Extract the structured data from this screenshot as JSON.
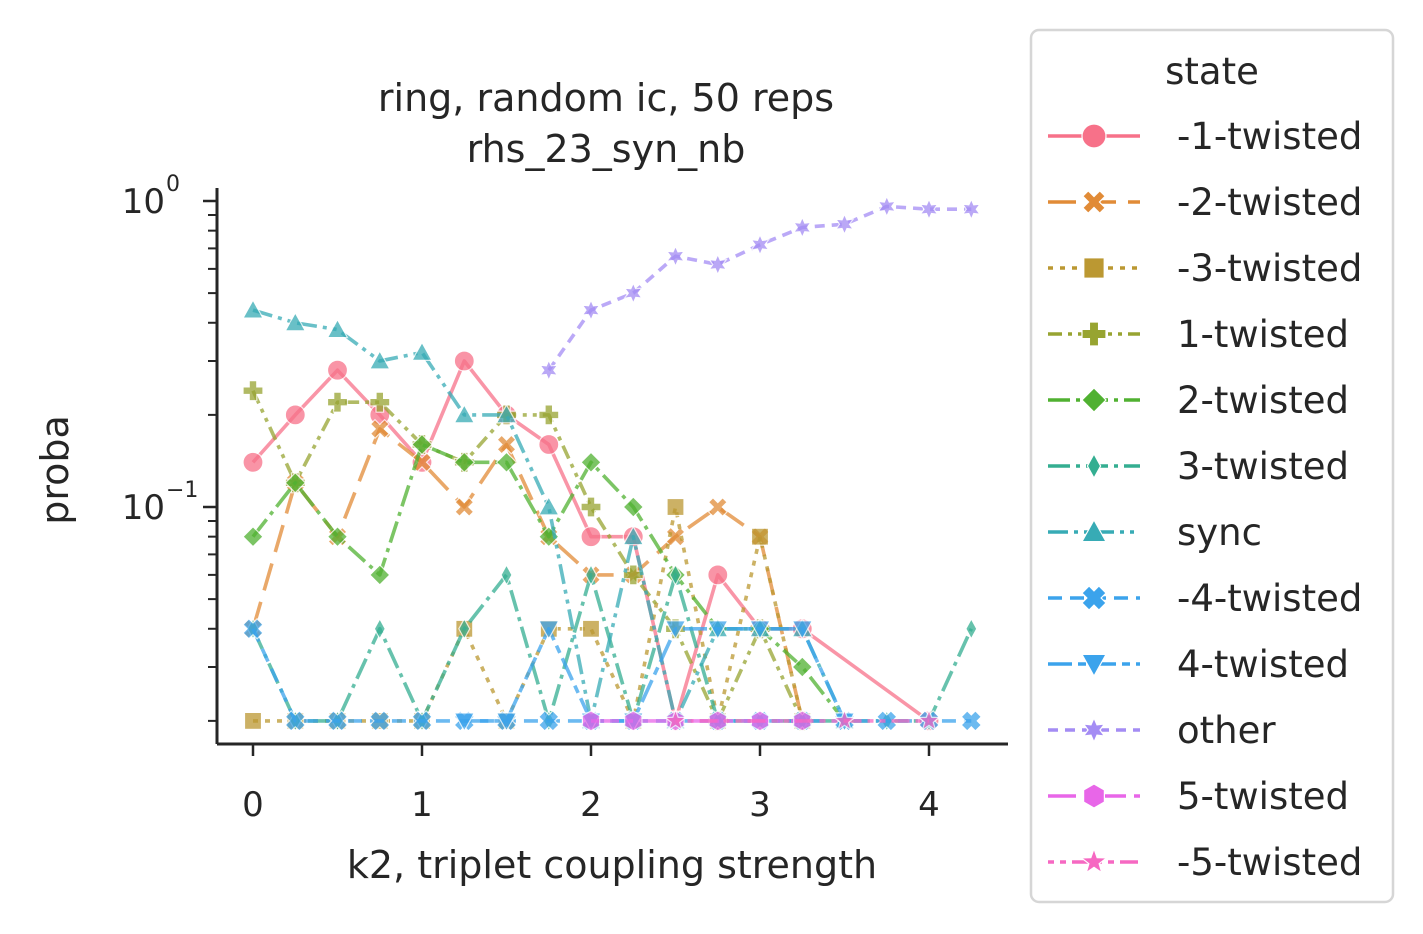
{
  "chart_data": {
    "type": "line",
    "title": [
      "ring, random ic, 50 reps",
      "rhs_23_syn_nb"
    ],
    "xlabel": "k2, triplet coupling strength",
    "ylabel": "proba",
    "yscale": "log",
    "xlim": [
      -0.2,
      4.5
    ],
    "ylim": [
      0.0175,
      1.1
    ],
    "xticks": [
      0,
      1,
      2,
      3,
      4
    ],
    "xtick_labels": [
      "0",
      "1",
      "2",
      "3",
      "4"
    ],
    "ytick_major": [
      {
        "value": 1.0,
        "base": "10",
        "exp": "0"
      },
      {
        "value": 0.1,
        "base": "10",
        "exp": "−1"
      }
    ],
    "ytick_minor": [
      0.02,
      0.03,
      0.04,
      0.05,
      0.06,
      0.07,
      0.08,
      0.09,
      0.2,
      0.3,
      0.4,
      0.5,
      0.6,
      0.7,
      0.8,
      0.9
    ],
    "grid": false,
    "legend": {
      "title": "state",
      "position": "outside right"
    },
    "series": [
      {
        "name": "-1-twisted",
        "color": "#f77189",
        "marker": "circle",
        "dash": "",
        "points": [
          [
            0,
            0.14
          ],
          [
            0.25,
            0.2
          ],
          [
            0.5,
            0.28
          ],
          [
            0.75,
            0.2
          ],
          [
            1,
            0.14
          ],
          [
            1.25,
            0.3
          ],
          [
            1.5,
            0.2
          ],
          [
            1.75,
            0.16
          ],
          [
            2,
            0.08
          ],
          [
            2.25,
            0.08
          ],
          [
            2.5,
            0.02
          ],
          [
            2.75,
            0.06
          ],
          [
            3,
            0.04
          ],
          [
            3.25,
            0.04
          ],
          [
            4,
            0.02
          ]
        ]
      },
      {
        "name": "-2-twisted",
        "color": "#e18b37",
        "marker": "x",
        "dash": "28 12",
        "points": [
          [
            0,
            0.04
          ],
          [
            0.25,
            0.12
          ],
          [
            0.5,
            0.08
          ],
          [
            0.75,
            0.18
          ],
          [
            1,
            0.14
          ],
          [
            1.25,
            0.1
          ],
          [
            1.5,
            0.16
          ],
          [
            1.75,
            0.08
          ],
          [
            2,
            0.06
          ],
          [
            2.25,
            0.06
          ],
          [
            2.5,
            0.08
          ],
          [
            2.75,
            0.1
          ],
          [
            3,
            0.08
          ],
          [
            3.25,
            0.02
          ]
        ]
      },
      {
        "name": "-3-twisted",
        "color": "#bb9832",
        "marker": "square",
        "dash": "5 7",
        "points": [
          [
            0,
            0.02
          ],
          [
            0.25,
            0.02
          ],
          [
            0.5,
            0.02
          ],
          [
            0.75,
            0.02
          ],
          [
            1,
            0.02
          ],
          [
            1.25,
            0.04
          ],
          [
            1.5,
            0.02
          ],
          [
            1.75,
            0.04
          ],
          [
            2,
            0.04
          ],
          [
            2.25,
            0.02
          ],
          [
            2.5,
            0.1
          ],
          [
            2.75,
            0.02
          ],
          [
            3,
            0.08
          ],
          [
            3.25,
            0.02
          ]
        ]
      },
      {
        "name": "1-twisted",
        "color": "#97a431",
        "marker": "plus",
        "dash": "14 6 4 6 4 6",
        "points": [
          [
            0,
            0.24
          ],
          [
            0.25,
            0.12
          ],
          [
            0.5,
            0.22
          ],
          [
            0.75,
            0.22
          ],
          [
            1,
            0.16
          ],
          [
            1.25,
            0.14
          ],
          [
            1.5,
            0.2
          ],
          [
            1.75,
            0.2
          ],
          [
            2,
            0.1
          ],
          [
            2.25,
            0.06
          ],
          [
            2.5,
            0.04
          ],
          [
            2.75,
            0.02
          ],
          [
            3,
            0.04
          ],
          [
            3.25,
            0.02
          ]
        ]
      },
      {
        "name": "2-twisted",
        "color": "#50b131",
        "marker": "diamond",
        "dash": "22 6 4 6",
        "points": [
          [
            0,
            0.08
          ],
          [
            0.25,
            0.12
          ],
          [
            0.5,
            0.08
          ],
          [
            0.75,
            0.06
          ],
          [
            1,
            0.16
          ],
          [
            1.25,
            0.14
          ],
          [
            1.5,
            0.14
          ],
          [
            1.75,
            0.08
          ],
          [
            2,
            0.14
          ],
          [
            2.25,
            0.1
          ],
          [
            2.5,
            0.06
          ],
          [
            2.75,
            0.04
          ],
          [
            3,
            0.04
          ],
          [
            3.25,
            0.03
          ],
          [
            3.5,
            0.02
          ]
        ]
      },
      {
        "name": "3-twisted",
        "color": "#34ae91",
        "marker": "thin-diamond",
        "dash": "22 6 4 6",
        "points": [
          [
            0,
            0.04
          ],
          [
            0.25,
            0.02
          ],
          [
            0.5,
            0.02
          ],
          [
            0.75,
            0.04
          ],
          [
            1,
            0.02
          ],
          [
            1.25,
            0.04
          ],
          [
            1.5,
            0.06
          ],
          [
            1.75,
            0.02
          ],
          [
            2,
            0.06
          ],
          [
            2.25,
            0.02
          ],
          [
            2.5,
            0.06
          ],
          [
            2.75,
            0.02
          ],
          [
            3,
            0.02
          ],
          [
            3.25,
            0.02
          ],
          [
            3.5,
            0.02
          ],
          [
            3.75,
            0.02
          ],
          [
            4,
            0.02
          ],
          [
            4.25,
            0.04
          ]
        ]
      },
      {
        "name": "sync",
        "color": "#37abb5",
        "marker": "triangle-up",
        "dash": "20 6 4 6 4 6",
        "points": [
          [
            0,
            0.44
          ],
          [
            0.25,
            0.4
          ],
          [
            0.5,
            0.38
          ],
          [
            0.75,
            0.3
          ],
          [
            1,
            0.32
          ],
          [
            1.25,
            0.2
          ],
          [
            1.5,
            0.2
          ],
          [
            1.75,
            0.1
          ],
          [
            2,
            0.02
          ],
          [
            2.25,
            0.08
          ],
          [
            2.5,
            0.02
          ],
          [
            2.75,
            0.04
          ],
          [
            3,
            0.04
          ],
          [
            3.25,
            0.04
          ],
          [
            3.5,
            0.02
          ]
        ]
      },
      {
        "name": "-4-twisted",
        "color": "#3ba3ec",
        "marker": "x-fat",
        "dash": "14 8",
        "points": [
          [
            0,
            0.04
          ],
          [
            0.25,
            0.02
          ],
          [
            0.5,
            0.02
          ],
          [
            0.75,
            0.02
          ],
          [
            1,
            0.02
          ],
          [
            1.25,
            0.02
          ],
          [
            1.5,
            0.02
          ],
          [
            1.75,
            0.02
          ],
          [
            2,
            0.02
          ],
          [
            2.25,
            0.02
          ],
          [
            2.5,
            0.02
          ],
          [
            2.75,
            0.02
          ],
          [
            3,
            0.02
          ],
          [
            3.25,
            0.02
          ],
          [
            3.5,
            0.02
          ],
          [
            3.75,
            0.02
          ],
          [
            4,
            0.02
          ],
          [
            4.25,
            0.02
          ]
        ]
      },
      {
        "name": "4-twisted",
        "color": "#3ba3ec",
        "marker": "triangle-down",
        "dash": "24 6 8 6",
        "points": [
          [
            1.25,
            0.02
          ],
          [
            1.5,
            0.02
          ],
          [
            1.75,
            0.04
          ],
          [
            2,
            0.02
          ],
          [
            2.25,
            0.02
          ],
          [
            2.5,
            0.04
          ],
          [
            2.75,
            0.04
          ],
          [
            3,
            0.04
          ],
          [
            3.25,
            0.04
          ],
          [
            3.5,
            0.02
          ]
        ]
      },
      {
        "name": "other",
        "color": "#a48cf4",
        "marker": "star6",
        "dash": "10 7",
        "points": [
          [
            1.75,
            0.28
          ],
          [
            2,
            0.44
          ],
          [
            2.25,
            0.5
          ],
          [
            2.5,
            0.66
          ],
          [
            2.75,
            0.62
          ],
          [
            3,
            0.72
          ],
          [
            3.25,
            0.82
          ],
          [
            3.5,
            0.84
          ],
          [
            3.75,
            0.96
          ],
          [
            4,
            0.94
          ],
          [
            4.25,
            0.94
          ]
        ]
      },
      {
        "name": "5-twisted",
        "color": "#e866e8",
        "marker": "hexagon",
        "dash": "28 8 6 8",
        "points": [
          [
            2,
            0.02
          ],
          [
            2.25,
            0.02
          ],
          [
            2.5,
            0.02
          ],
          [
            2.75,
            0.02
          ],
          [
            3,
            0.02
          ],
          [
            3.25,
            0.02
          ]
        ]
      },
      {
        "name": "-5-twisted",
        "color": "#f668c2",
        "marker": "star5",
        "dash": "6 6 6 6 18 6",
        "points": [
          [
            2.5,
            0.02
          ],
          [
            3.5,
            0.02
          ],
          [
            4,
            0.02
          ]
        ]
      }
    ]
  }
}
